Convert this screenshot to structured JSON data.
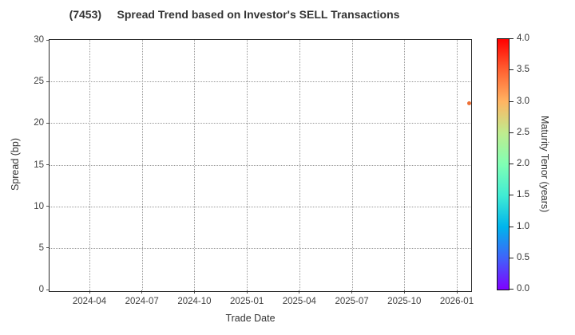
{
  "title": "(7453)     Spread Trend based on Investor's SELL Transactions",
  "chart_data": {
    "type": "scatter",
    "title": "(7453) Spread Trend based on Investor's SELL Transactions",
    "xlabel": "Trade Date",
    "ylabel": "Spread (bp)",
    "ylim": [
      0,
      30
    ],
    "xlim_approx": [
      "2024-02",
      "2026-02"
    ],
    "x_tick_labels": [
      "2024-04",
      "2024-07",
      "2024-10",
      "2025-01",
      "2025-04",
      "2025-07",
      "2025-10",
      "2026-01"
    ],
    "y_tick_labels": [
      "0",
      "5",
      "10",
      "15",
      "20",
      "25",
      "30"
    ],
    "grid": true,
    "grid_style": "dotted",
    "colorbar": {
      "label": "Maturity Tenor (years)",
      "range": [
        0,
        4
      ],
      "orientation": "vertical-right",
      "tick_labels": [
        "0.0",
        "0.5",
        "1.0",
        "1.5",
        "2.0",
        "2.5",
        "3.0",
        "3.5",
        "4.0"
      ],
      "colormap": "rainbow",
      "gradient": [
        {
          "at": 0.0,
          "color": "#7f00ff"
        },
        {
          "at": 0.125,
          "color": "#4062fa"
        },
        {
          "at": 0.25,
          "color": "#00b4ec"
        },
        {
          "at": 0.375,
          "color": "#40ecd4"
        },
        {
          "at": 0.5,
          "color": "#80ffb4"
        },
        {
          "at": 0.625,
          "color": "#bfec8e"
        },
        {
          "at": 0.75,
          "color": "#ffb462"
        },
        {
          "at": 0.875,
          "color": "#ff6232"
        },
        {
          "at": 1.0,
          "color": "#ff0000"
        }
      ]
    },
    "points": [
      {
        "trade_date": "2026-01-22",
        "spread_bp": 22.4,
        "maturity_tenor_years": 3.3,
        "color": "#ee7036"
      }
    ]
  }
}
